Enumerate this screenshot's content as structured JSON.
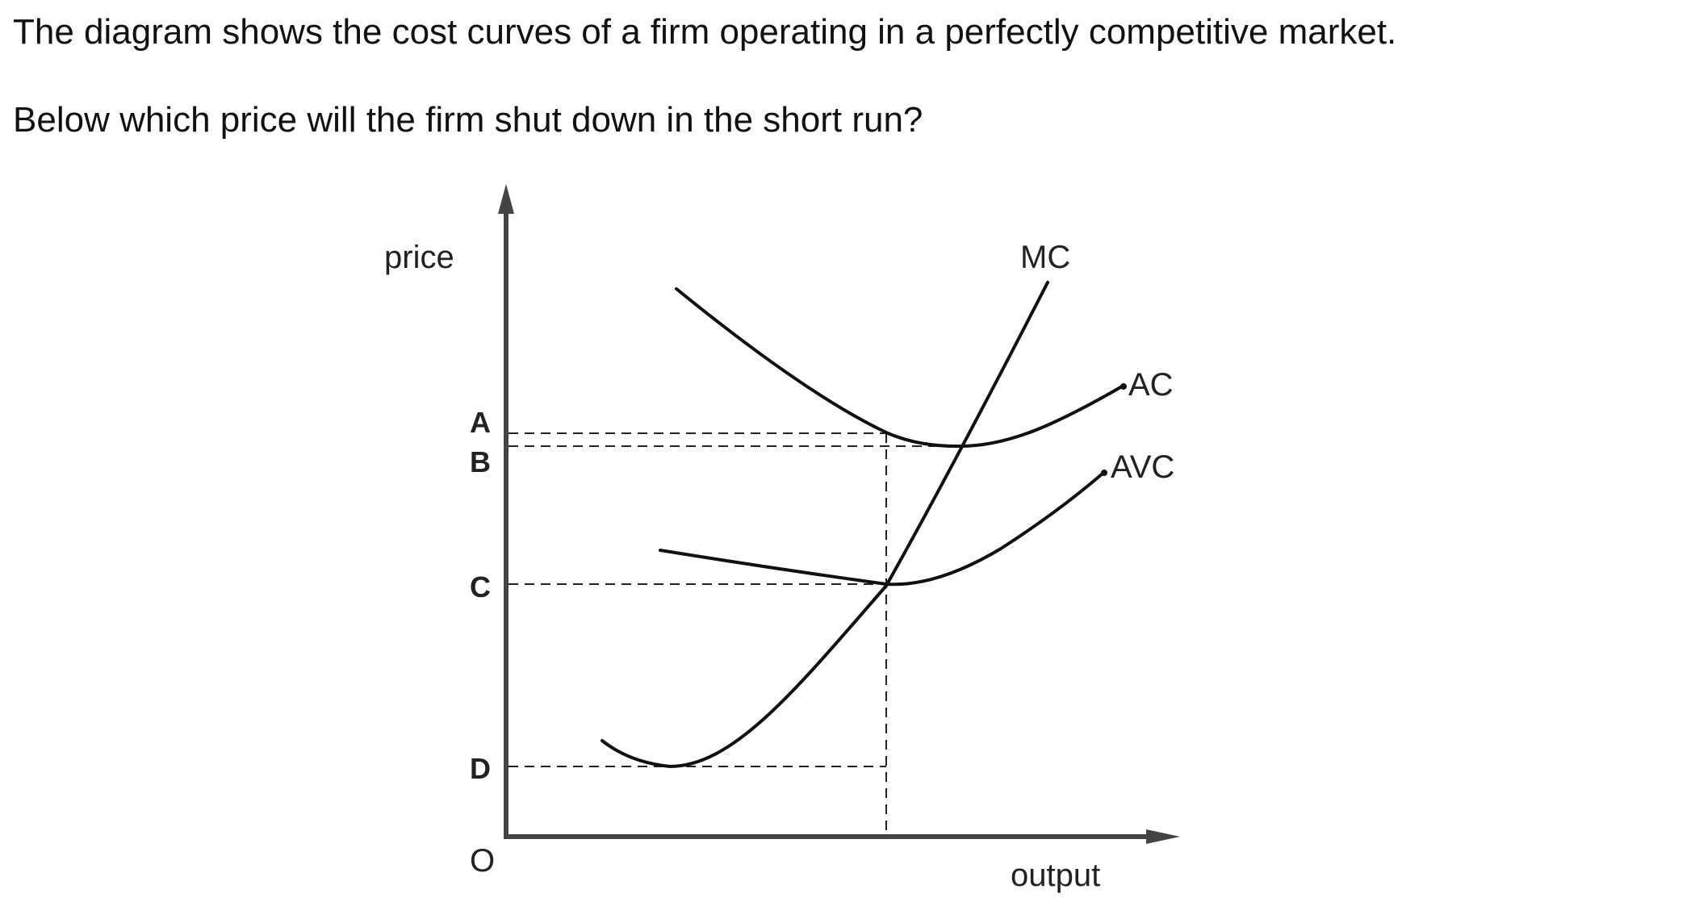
{
  "question": {
    "line1": "The diagram shows the cost curves of a firm operating in a perfectly competitive market.",
    "line2": "Below which price will the firm shut down in the short run?"
  },
  "diagram": {
    "y_axis_label": "price",
    "x_axis_label": "output",
    "origin_label": "O",
    "price_levels": [
      "A",
      "B",
      "C",
      "D"
    ],
    "curves": [
      "MC",
      "AC",
      "AVC"
    ]
  }
}
